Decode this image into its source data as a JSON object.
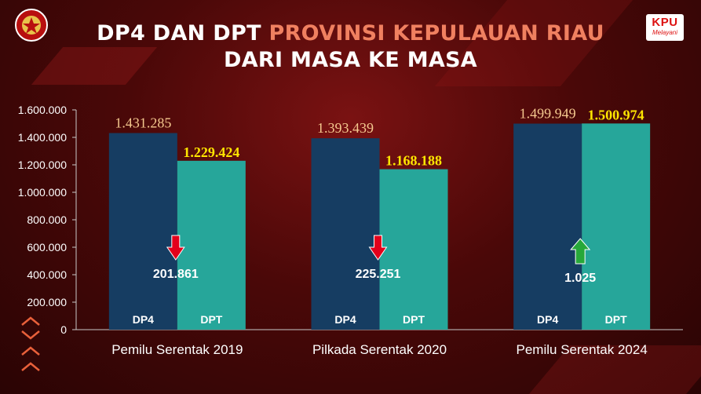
{
  "header": {
    "title_white": "DP4 DAN DPT",
    "title_highlight": "PROVINSI KEPULAUAN RIAU",
    "title_line2": "DARI MASA KE MASA",
    "logo_right_line1": "KPU",
    "logo_right_line2": "Melayani"
  },
  "colors": {
    "dp4": "#163d62",
    "dpt": "#26a69a",
    "dp4_label": "#f5c98f",
    "dpt_label": "#ffe600",
    "arrow_down": "#e3001b",
    "arrow_up": "#27a83a",
    "title_highlight": "#f08060"
  },
  "chart_data": {
    "type": "bar",
    "categories": [
      "Pemilu Serentak 2019",
      "Pilkada Serentak 2020",
      "Pemilu Serentak 2024"
    ],
    "series": [
      {
        "name": "DP4",
        "values": [
          1431285,
          1393439,
          1499949
        ],
        "labels": [
          "1.431.285",
          "1.393.439",
          "1.499.949"
        ]
      },
      {
        "name": "DPT",
        "values": [
          1229424,
          1168188,
          1500974
        ],
        "labels": [
          "1.229.424",
          "1.168.188",
          "1.500.974"
        ]
      }
    ],
    "ylim": [
      0,
      1600000
    ],
    "yticks": [
      0,
      200000,
      400000,
      600000,
      800000,
      1000000,
      1200000,
      1400000,
      1600000
    ],
    "ytick_labels": [
      "0",
      "200.000",
      "400.000",
      "600.000",
      "800.000",
      "1.000.000",
      "1.200.000",
      "1.400.000",
      "1.600.000"
    ],
    "differences": [
      {
        "value": 201861,
        "label": "201.861",
        "direction": "down"
      },
      {
        "value": 225251,
        "label": "225.251",
        "direction": "down"
      },
      {
        "value": 1025,
        "label": "1.025",
        "direction": "up"
      }
    ],
    "grid": false,
    "legend": "inside bars"
  }
}
